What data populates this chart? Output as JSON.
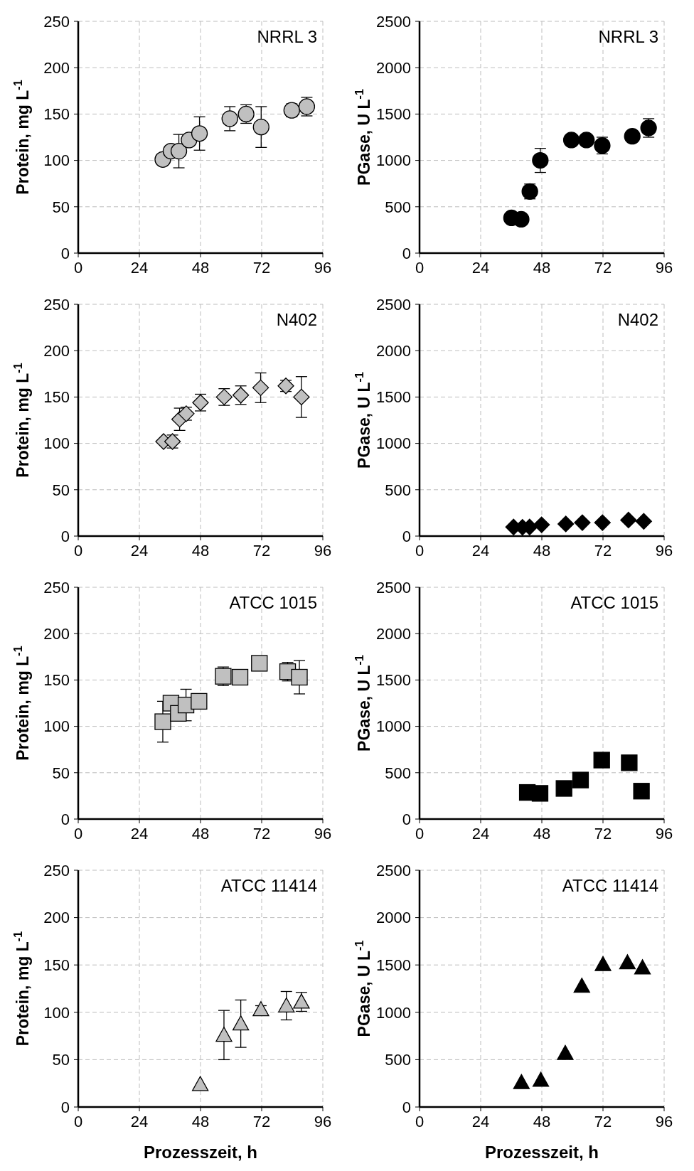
{
  "chart_data": [
    {
      "type": "scatter",
      "title": "NRRL 3",
      "ylabel": "Protein, mg L$^{-1}$",
      "xlim": [
        0,
        96
      ],
      "xticks": [
        0,
        24,
        48,
        72,
        96
      ],
      "ylim": [
        0,
        250
      ],
      "yticks": [
        0,
        50,
        100,
        150,
        200,
        250
      ],
      "grid": true,
      "marker": "circle",
      "color": "#c0c0c0",
      "x": [
        33.2,
        36.4,
        39.5,
        43.5,
        47.6,
        59.5,
        65.9,
        71.8,
        83.8,
        89.7
      ],
      "values": [
        101,
        110,
        110,
        122,
        129,
        145,
        150,
        136,
        154,
        158
      ],
      "errors": [
        null,
        null,
        18,
        null,
        18,
        13,
        10,
        22,
        7,
        10
      ]
    },
    {
      "type": "scatter",
      "title": "NRRL 3",
      "ylabel": "PGase, U L$^{-1}$",
      "xlim": [
        0,
        96
      ],
      "xticks": [
        0,
        24,
        48,
        72,
        96
      ],
      "ylim": [
        0,
        2500
      ],
      "yticks": [
        0,
        500,
        1000,
        1500,
        2000,
        2500
      ],
      "grid": true,
      "marker": "circle",
      "color": "#000000",
      "x": [
        36.1,
        39.9,
        43.3,
        47.4,
        59.6,
        65.5,
        71.7,
        83.5,
        89.9
      ],
      "values": [
        380,
        365,
        665,
        1000,
        1220,
        1220,
        1160,
        1260,
        1350
      ],
      "errors": [
        null,
        60,
        80,
        130,
        null,
        null,
        90,
        null,
        100
      ]
    },
    {
      "type": "scatter",
      "title": "N402",
      "ylabel": "Protein, mg L$^{-1}$",
      "xlim": [
        0,
        96
      ],
      "xticks": [
        0,
        24,
        48,
        72,
        96
      ],
      "ylim": [
        0,
        250
      ],
      "yticks": [
        0,
        50,
        100,
        150,
        200,
        250
      ],
      "grid": true,
      "marker": "diamond",
      "color": "#c0c0c0",
      "x": [
        33.5,
        37,
        39.8,
        42.4,
        48,
        57.3,
        63.8,
        71.6,
        81.5,
        87.6
      ],
      "values": [
        102,
        102,
        126,
        132,
        144,
        150,
        152,
        160,
        162,
        150
      ],
      "errors": [
        null,
        7,
        12,
        7,
        9,
        9,
        10,
        16,
        6,
        22
      ]
    },
    {
      "type": "scatter",
      "title": "N402",
      "ylabel": "PGase, U L$^{-1}$",
      "xlim": [
        0,
        96
      ],
      "xticks": [
        0,
        24,
        48,
        72,
        96
      ],
      "ylim": [
        0,
        2500
      ],
      "yticks": [
        0,
        500,
        1000,
        1500,
        2000,
        2500
      ],
      "grid": true,
      "marker": "diamond",
      "color": "#000000",
      "x": [
        36.9,
        40.4,
        43.2,
        47.9,
        57.4,
        63.9,
        71.8,
        82,
        88
      ],
      "values": [
        98,
        95,
        98,
        122,
        131,
        145,
        145,
        173,
        159
      ]
    },
    {
      "type": "scatter",
      "title": "ATCC 1015",
      "ylabel": "Protein, mg L$^{-1}$",
      "xlim": [
        0,
        96
      ],
      "xticks": [
        0,
        24,
        48,
        72,
        96
      ],
      "ylim": [
        0,
        250
      ],
      "yticks": [
        0,
        50,
        100,
        150,
        200,
        250
      ],
      "grid": true,
      "marker": "square",
      "color": "#c0c0c0",
      "x": [
        33.2,
        36.4,
        39.3,
        42.3,
        47.4,
        56.9,
        63.5,
        71.1,
        82.2,
        86.8
      ],
      "values": [
        105,
        125,
        114,
        123,
        127,
        154,
        153,
        168,
        159,
        153
      ],
      "errors": [
        22,
        null,
        8,
        17,
        null,
        10,
        null,
        null,
        10,
        18
      ]
    },
    {
      "type": "scatter",
      "title": "ATCC 1015",
      "ylabel": "PGase, U L$^{-1}$",
      "xlim": [
        0,
        96
      ],
      "xticks": [
        0,
        24,
        48,
        72,
        96
      ],
      "ylim": [
        0,
        2500
      ],
      "yticks": [
        0,
        500,
        1000,
        1500,
        2000,
        2500
      ],
      "grid": true,
      "marker": "square",
      "color": "#000000",
      "x": [
        42.3,
        47.3,
        56.7,
        63.2,
        71.5,
        82.3,
        87.1
      ],
      "values": [
        287,
        277,
        330,
        421,
        636,
        607,
        301
      ]
    },
    {
      "type": "scatter",
      "title": "ATCC 11414",
      "xlabel": "Prozesszeit, h",
      "ylabel": "Protein, mg L$^{-1}$",
      "xlim": [
        0,
        96
      ],
      "xticks": [
        0,
        24,
        48,
        72,
        96
      ],
      "ylim": [
        0,
        250
      ],
      "yticks": [
        0,
        50,
        100,
        150,
        200,
        250
      ],
      "grid": true,
      "marker": "triangle",
      "color": "#c0c0c0",
      "x": [
        47.9,
        57.2,
        63.8,
        71.7,
        81.7,
        87.6
      ],
      "values": [
        24,
        76,
        88,
        103,
        107,
        111
      ],
      "errors": [
        null,
        26,
        25,
        4,
        15,
        10
      ]
    },
    {
      "type": "scatter",
      "title": "ATCC 11414",
      "xlabel": "Prozesszeit, h",
      "ylabel": "PGase, U L$^{-1}$",
      "xlim": [
        0,
        96
      ],
      "xticks": [
        0,
        24,
        48,
        72,
        96
      ],
      "ylim": [
        0,
        2500
      ],
      "yticks": [
        0,
        500,
        1000,
        1500,
        2000,
        2500
      ],
      "grid": true,
      "marker": "triangle",
      "color": "#000000",
      "x": [
        40,
        47.6,
        57.2,
        63.7,
        72,
        81.6,
        87.5
      ],
      "values": [
        260,
        284,
        568,
        1278,
        1506,
        1525,
        1472
      ]
    }
  ]
}
